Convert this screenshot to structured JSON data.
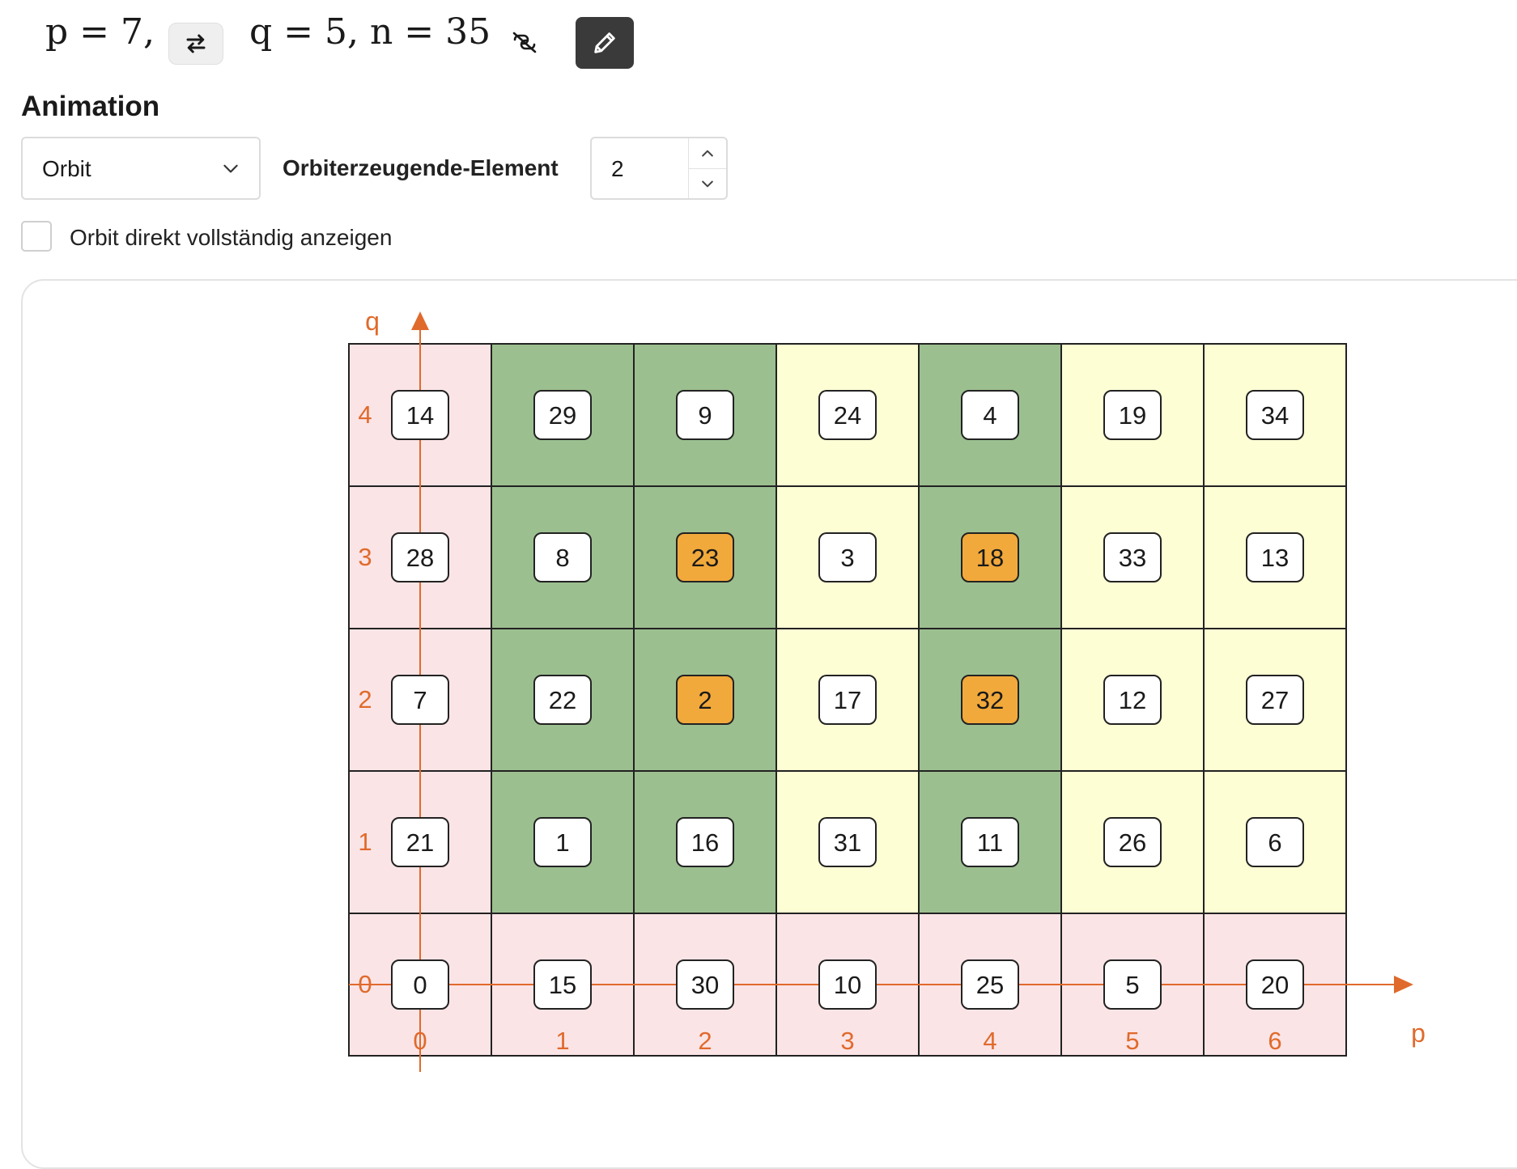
{
  "equation": {
    "p_text": "p = 7,",
    "q_n_text": "q = 5,  n = 35"
  },
  "icons": {
    "swap": "swap-arrows-icon",
    "unlink": "unlink-icon",
    "edit": "pencil-icon"
  },
  "animation": {
    "heading": "Animation",
    "select_value": "Orbit",
    "generator_label": "Orbiterzeugende-Element",
    "generator_value": "2",
    "show_full_label": "Orbit direkt vollständig anzeigen",
    "show_full_checked": false
  },
  "grid": {
    "p": 7,
    "q": 5,
    "axis_label_p": "p",
    "axis_label_q": "q",
    "p_ticks": [
      "0",
      "1",
      "2",
      "3",
      "4",
      "5",
      "6"
    ],
    "q_ticks": [
      "0",
      "1",
      "2",
      "3",
      "4"
    ],
    "rows_top_to_bottom": [
      {
        "q": 4,
        "values": [
          14,
          29,
          9,
          24,
          4,
          19,
          34
        ]
      },
      {
        "q": 3,
        "values": [
          28,
          8,
          23,
          3,
          18,
          33,
          13
        ]
      },
      {
        "q": 2,
        "values": [
          7,
          22,
          2,
          17,
          32,
          12,
          27
        ]
      },
      {
        "q": 1,
        "values": [
          21,
          1,
          16,
          31,
          11,
          26,
          6
        ]
      },
      {
        "q": 0,
        "values": [
          0,
          15,
          30,
          10,
          25,
          5,
          20
        ]
      }
    ],
    "highlighted": [
      23,
      18,
      2,
      32
    ],
    "colors": {
      "pink": "#fbe4e6",
      "green": "#9cbf90",
      "yellow": "#fefed5",
      "highlight": "#f2a93b",
      "axis": "#e06a2c",
      "line": "#222222"
    },
    "column_colors": [
      "pink",
      "green",
      "green",
      "yellow",
      "green",
      "yellow",
      "yellow"
    ]
  }
}
